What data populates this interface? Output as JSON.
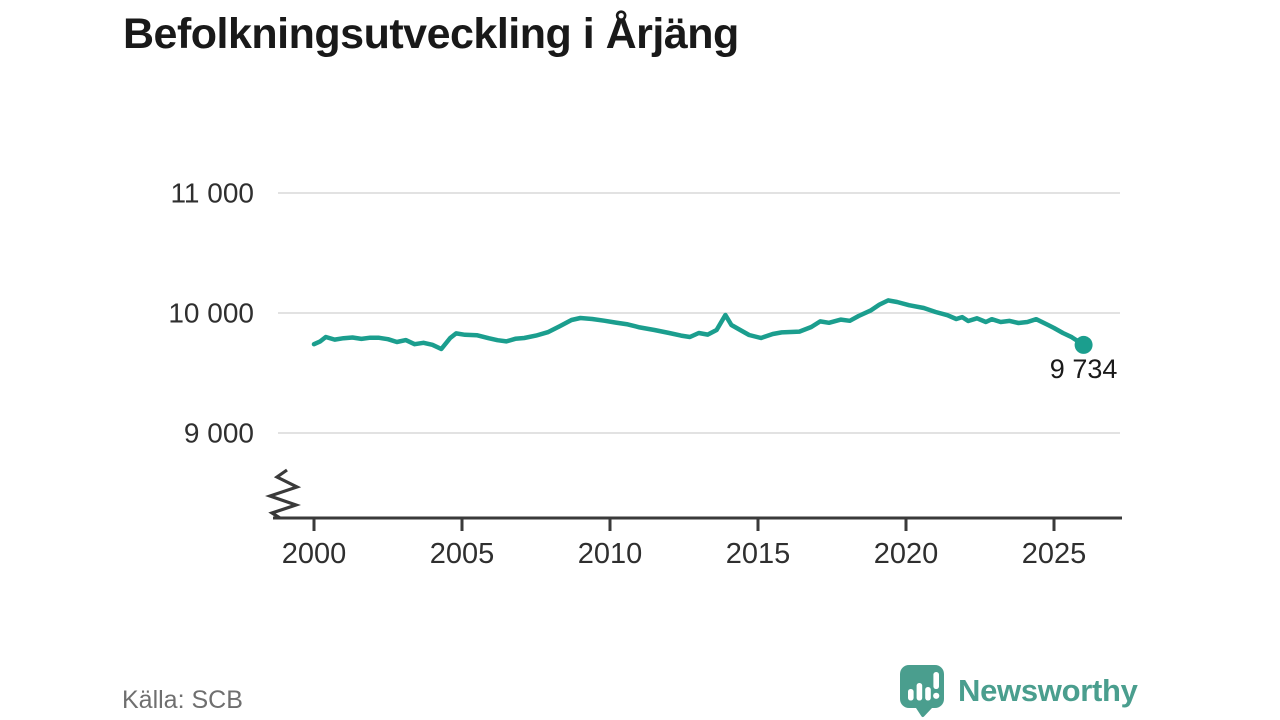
{
  "title": "Befolkningsutveckling i Årjäng",
  "source": "Källa: SCB",
  "branding": {
    "name": "Newsworthy",
    "icon": "newsworthy-speech-bubble-bar-chart-icon",
    "color": "#4a9e8e"
  },
  "chart_data": {
    "type": "line",
    "title": "Befolkningsutveckling i Årjäng",
    "xlabel": "",
    "ylabel": "",
    "x_ticks": [
      2000,
      2005,
      2010,
      2015,
      2020,
      2025
    ],
    "y_ticks": [
      9000,
      10000,
      11000
    ],
    "y_tick_labels": [
      "9 000",
      "10 000",
      "11 000"
    ],
    "x_range": [
      2000,
      2026
    ],
    "y_range_visible": [
      9000,
      11000
    ],
    "y_axis_break": true,
    "grid": "horizontal",
    "legend": "none",
    "line_color": "#1b9e8e",
    "last_value": 9734,
    "last_point_label": "9 734",
    "points": [
      [
        2000.0,
        9740
      ],
      [
        2000.2,
        9762
      ],
      [
        2000.4,
        9800
      ],
      [
        2000.7,
        9778
      ],
      [
        2001.0,
        9790
      ],
      [
        2001.3,
        9796
      ],
      [
        2001.6,
        9784
      ],
      [
        2001.9,
        9794
      ],
      [
        2002.2,
        9793
      ],
      [
        2002.5,
        9782
      ],
      [
        2002.8,
        9758
      ],
      [
        2003.1,
        9774
      ],
      [
        2003.4,
        9740
      ],
      [
        2003.7,
        9752
      ],
      [
        2004.0,
        9735
      ],
      [
        2004.3,
        9700
      ],
      [
        2004.6,
        9792
      ],
      [
        2004.8,
        9830
      ],
      [
        2005.1,
        9818
      ],
      [
        2005.5,
        9815
      ],
      [
        2005.9,
        9790
      ],
      [
        2006.2,
        9773
      ],
      [
        2006.5,
        9763
      ],
      [
        2006.8,
        9785
      ],
      [
        2007.1,
        9792
      ],
      [
        2007.5,
        9812
      ],
      [
        2007.9,
        9840
      ],
      [
        2008.3,
        9890
      ],
      [
        2008.7,
        9942
      ],
      [
        2009.0,
        9958
      ],
      [
        2009.4,
        9950
      ],
      [
        2009.8,
        9936
      ],
      [
        2010.2,
        9920
      ],
      [
        2010.6,
        9905
      ],
      [
        2011.0,
        9880
      ],
      [
        2011.5,
        9858
      ],
      [
        2012.0,
        9833
      ],
      [
        2012.4,
        9812
      ],
      [
        2012.7,
        9800
      ],
      [
        2013.0,
        9833
      ],
      [
        2013.3,
        9820
      ],
      [
        2013.6,
        9858
      ],
      [
        2013.9,
        9983
      ],
      [
        2014.1,
        9900
      ],
      [
        2014.4,
        9858
      ],
      [
        2014.7,
        9817
      ],
      [
        2015.1,
        9792
      ],
      [
        2015.5,
        9825
      ],
      [
        2015.8,
        9838
      ],
      [
        2016.1,
        9842
      ],
      [
        2016.4,
        9845
      ],
      [
        2016.8,
        9883
      ],
      [
        2017.1,
        9930
      ],
      [
        2017.4,
        9918
      ],
      [
        2017.8,
        9945
      ],
      [
        2018.1,
        9935
      ],
      [
        2018.4,
        9975
      ],
      [
        2018.8,
        10020
      ],
      [
        2019.1,
        10070
      ],
      [
        2019.4,
        10105
      ],
      [
        2019.7,
        10092
      ],
      [
        2020.1,
        10065
      ],
      [
        2020.6,
        10042
      ],
      [
        2021.0,
        10008
      ],
      [
        2021.4,
        9982
      ],
      [
        2021.7,
        9950
      ],
      [
        2021.9,
        9966
      ],
      [
        2022.1,
        9933
      ],
      [
        2022.4,
        9956
      ],
      [
        2022.7,
        9925
      ],
      [
        2022.9,
        9948
      ],
      [
        2023.2,
        9925
      ],
      [
        2023.5,
        9934
      ],
      [
        2023.8,
        9917
      ],
      [
        2024.1,
        9925
      ],
      [
        2024.4,
        9948
      ],
      [
        2024.8,
        9900
      ],
      [
        2025.0,
        9875
      ],
      [
        2025.3,
        9833
      ],
      [
        2025.6,
        9798
      ],
      [
        2026.0,
        9734
      ]
    ]
  }
}
